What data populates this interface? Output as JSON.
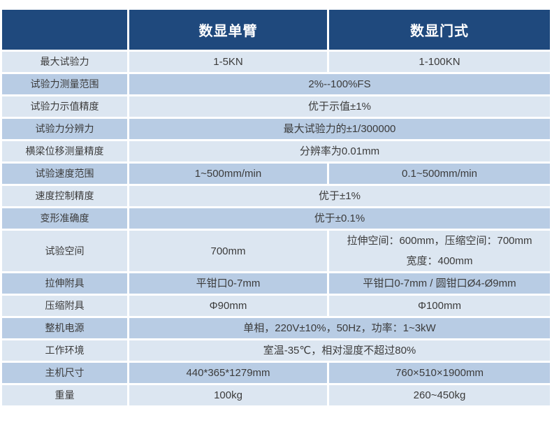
{
  "table": {
    "header": {
      "corner": "",
      "col1": "数显单臂",
      "col2": "数显门式"
    },
    "rows": [
      {
        "label": "最大试验力",
        "cells": [
          "1-5KN",
          "1-100KN"
        ]
      },
      {
        "label": "试验力测量范围",
        "span": "2%--100%FS"
      },
      {
        "label": "试验力示值精度",
        "span": "优于示值±1%"
      },
      {
        "label": "试验力分辨力",
        "span": "最大试验力的±1/300000"
      },
      {
        "label": "横梁位移测量精度",
        "span": "分辨率为0.01mm"
      },
      {
        "label": "试验速度范围",
        "cells": [
          "1~500mm/min",
          "0.1~500mm/min"
        ]
      },
      {
        "label": "速度控制精度",
        "span": "优于±1%"
      },
      {
        "label": "变形准确度",
        "span": "优于±0.1%"
      },
      {
        "label": "试验空间",
        "cells": [
          "700mm",
          [
            "拉伸空间：600mm，压缩空间：700mm",
            "宽度：400mm"
          ]
        ]
      },
      {
        "label": "拉伸附具",
        "cells": [
          "平钳口0-7mm",
          "平钳口0-7mm / 圆钳口Ø4-Ø9mm"
        ]
      },
      {
        "label": "压缩附具",
        "cells": [
          "Φ90mm",
          "Φ100mm"
        ]
      },
      {
        "label": "整机电源",
        "span": "单相，220V±10%，50Hz，功率：1~3kW"
      },
      {
        "label": "工作环境",
        "span": "室温-35℃，相对湿度不超过80%"
      },
      {
        "label": "主机尺寸",
        "cells": [
          "440*365*1279mm",
          "760×510×1900mm"
        ]
      },
      {
        "label": "重量",
        "cells": [
          "100kg",
          "260~450kg"
        ]
      }
    ]
  },
  "colors": {
    "header_bg": "#1f497d",
    "row_light": "#dce6f1",
    "row_mid": "#b8cce4",
    "separator": "#ffffff",
    "header_text": "#ffffff",
    "body_text": "#3b3b3b"
  }
}
